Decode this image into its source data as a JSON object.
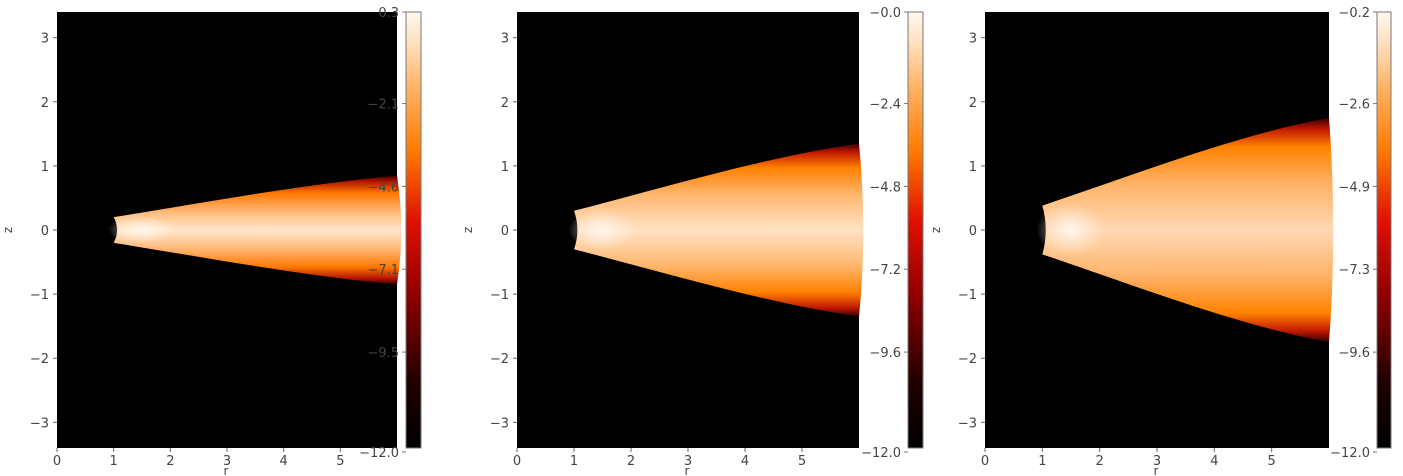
{
  "chart_data": [
    {
      "type": "heatmap",
      "panel": "left",
      "xlabel": "r",
      "ylabel": "z",
      "xlim": [
        0,
        6
      ],
      "ylim": [
        -3.4,
        3.4
      ],
      "x_ticks": [
        "0",
        "1",
        "2",
        "3",
        "4",
        "5"
      ],
      "y_ticks": [
        "-3",
        "-2",
        "-1",
        "0",
        "1",
        "2",
        "3"
      ],
      "colorbar": {
        "min": -12.0,
        "max": 0.3,
        "tick_labels": [
          "0.3",
          "-2.1",
          "-4.6",
          "-7.1",
          "-9.5",
          "-12.0"
        ]
      },
      "inner_radius": 1.0,
      "outer_radius": 6.0,
      "half_height_inner": 0.2,
      "half_height_outer": 0.85
    },
    {
      "type": "heatmap",
      "panel": "middle",
      "xlabel": "r",
      "ylabel": "z",
      "xlim": [
        0,
        6
      ],
      "ylim": [
        -3.4,
        3.4
      ],
      "x_ticks": [
        "0",
        "1",
        "2",
        "3",
        "4",
        "5"
      ],
      "y_ticks": [
        "-3",
        "-2",
        "-1",
        "0",
        "1",
        "2",
        "3"
      ],
      "colorbar": {
        "min": -12.0,
        "max": 0.0,
        "tick_labels": [
          "-0.0",
          "-2.4",
          "-4.8",
          "-7.2",
          "-9.6",
          "-12.0"
        ]
      },
      "inner_radius": 1.0,
      "outer_radius": 6.0,
      "half_height_inner": 0.3,
      "half_height_outer": 1.35
    },
    {
      "type": "heatmap",
      "panel": "right",
      "xlabel": "r",
      "ylabel": "z",
      "xlim": [
        0,
        6
      ],
      "ylim": [
        -3.4,
        3.4
      ],
      "x_ticks": [
        "0",
        "1",
        "2",
        "3",
        "4",
        "5"
      ],
      "y_ticks": [
        "-3",
        "-2",
        "-1",
        "0",
        "1",
        "2",
        "3"
      ],
      "colorbar": {
        "min": -12.0,
        "max": -0.2,
        "tick_labels": [
          "-0.2",
          "-2.6",
          "-4.9",
          "-7.3",
          "-9.6",
          "-12.0"
        ]
      },
      "inner_radius": 1.0,
      "outer_radius": 6.0,
      "half_height_inner": 0.38,
      "half_height_outer": 1.75
    }
  ]
}
